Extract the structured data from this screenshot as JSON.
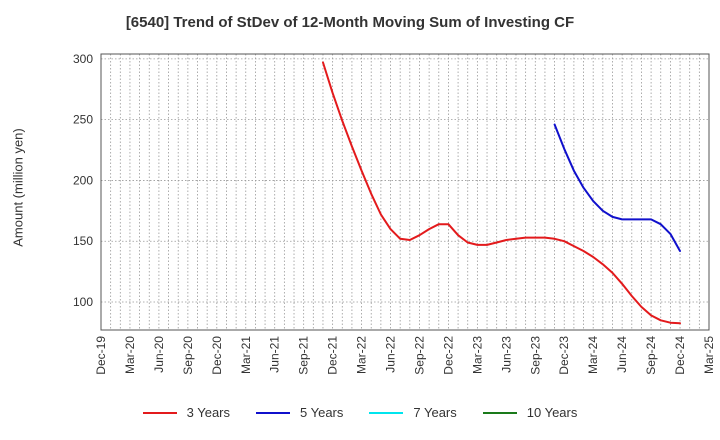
{
  "chart_data": {
    "type": "line",
    "title": "[6540]  Trend of StDev of 12-Month Moving Sum of Investing CF",
    "xlabel": "",
    "ylabel": "Amount (million yen)",
    "categories": [
      "Dec-19",
      "Mar-20",
      "Jun-20",
      "Sep-20",
      "Dec-20",
      "Mar-21",
      "Jun-21",
      "Sep-21",
      "Dec-21",
      "Mar-22",
      "Jun-22",
      "Sep-22",
      "Dec-22",
      "Mar-23",
      "Jun-23",
      "Sep-23",
      "Dec-23",
      "Mar-24",
      "Jun-24",
      "Sep-24",
      "Dec-24",
      "Mar-25"
    ],
    "ylim": [
      77,
      304
    ],
    "yticks": [
      100,
      150,
      200,
      250,
      300
    ],
    "grid": true,
    "legend_position": "bottom",
    "series": [
      {
        "name": "3 Years",
        "color": "#e31a1c",
        "x": [
          "Nov-21",
          "Dec-21",
          "Jan-22",
          "Feb-22",
          "Mar-22",
          "Apr-22",
          "May-22",
          "Jun-22",
          "Jul-22",
          "Aug-22",
          "Sep-22",
          "Oct-22",
          "Nov-22",
          "Dec-22",
          "Jan-23",
          "Feb-23",
          "Mar-23",
          "Apr-23",
          "May-23",
          "Jun-23",
          "Jul-23",
          "Aug-23",
          "Sep-23",
          "Oct-23",
          "Nov-23",
          "Dec-23",
          "Jan-24",
          "Feb-24",
          "Mar-24",
          "Apr-24",
          "May-24",
          "Jun-24",
          "Jul-24",
          "Aug-24",
          "Sep-24",
          "Oct-24",
          "Nov-24",
          "Dec-24"
        ],
        "values": [
          297,
          272,
          249,
          228,
          208,
          189,
          172,
          160,
          152,
          151,
          155,
          160,
          164,
          164,
          155,
          149,
          147,
          147,
          149,
          151,
          152,
          153,
          153,
          153,
          152,
          150,
          146,
          142,
          137,
          131,
          124,
          115,
          105,
          96,
          89,
          85,
          83,
          82.5
        ]
      },
      {
        "name": "5 Years",
        "color": "#1010cc",
        "x": [
          "Nov-23",
          "Dec-23",
          "Jan-24",
          "Feb-24",
          "Mar-24",
          "Apr-24",
          "May-24",
          "Jun-24",
          "Jul-24",
          "Aug-24",
          "Sep-24",
          "Oct-24",
          "Nov-24",
          "Dec-24"
        ],
        "values": [
          246,
          226,
          208,
          194,
          183,
          175,
          170,
          168,
          168,
          168,
          168,
          164,
          156,
          142
        ]
      },
      {
        "name": "7 Years",
        "color": "#00e5ee",
        "x": [],
        "values": []
      },
      {
        "name": "10 Years",
        "color": "#1a7a1a",
        "x": [],
        "values": []
      }
    ]
  }
}
